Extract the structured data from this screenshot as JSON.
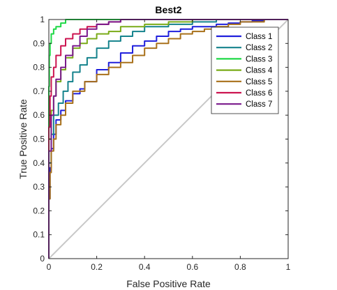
{
  "chart_data": {
    "type": "line",
    "title": "Best2",
    "xlabel": "False Positive Rate",
    "ylabel": "True Positive Rate",
    "xlim": [
      0,
      1
    ],
    "ylim": [
      0,
      1
    ],
    "xticks": [
      "0",
      "0.2",
      "0.4",
      "0.6",
      "0.8",
      "1"
    ],
    "yticks": [
      "0",
      "0.1",
      "0.2",
      "0.3",
      "0.4",
      "0.5",
      "0.6",
      "0.7",
      "0.8",
      "0.9",
      "1"
    ],
    "grid": false,
    "legend_position": "top-right",
    "reference_line": {
      "x": [
        0,
        1
      ],
      "y": [
        0,
        1
      ],
      "color": "#c8c8c8"
    },
    "series": [
      {
        "name": "Class 1",
        "color": "#1f1fdc",
        "x": [
          0,
          0.005,
          0.01,
          0.02,
          0.03,
          0.05,
          0.07,
          0.1,
          0.13,
          0.15,
          0.2,
          0.25,
          0.3,
          0.35,
          0.4,
          0.45,
          0.5,
          0.55,
          0.6,
          0.7,
          0.75,
          0.8,
          0.85,
          0.9,
          1
        ],
        "y": [
          0,
          0.25,
          0.38,
          0.46,
          0.52,
          0.58,
          0.62,
          0.66,
          0.69,
          0.71,
          0.74,
          0.79,
          0.82,
          0.86,
          0.89,
          0.91,
          0.93,
          0.95,
          0.96,
          0.97,
          0.98,
          0.985,
          0.99,
          0.995,
          1
        ]
      },
      {
        "name": "Class 2",
        "color": "#14828c",
        "x": [
          0,
          0.01,
          0.02,
          0.04,
          0.06,
          0.08,
          0.1,
          0.13,
          0.16,
          0.2,
          0.25,
          0.3,
          0.35,
          0.4,
          0.5,
          0.6,
          0.7,
          0.8,
          1
        ],
        "y": [
          0,
          0.4,
          0.52,
          0.6,
          0.65,
          0.7,
          0.74,
          0.78,
          0.81,
          0.84,
          0.88,
          0.91,
          0.93,
          0.95,
          0.97,
          0.98,
          0.99,
          1,
          1
        ]
      },
      {
        "name": "Class 3",
        "color": "#1ed846",
        "x": [
          0,
          0.002,
          0.005,
          0.01,
          0.02,
          0.03,
          0.05,
          0.07,
          0.1,
          0.3,
          1
        ],
        "y": [
          0,
          0.72,
          0.85,
          0.9,
          0.94,
          0.96,
          0.97,
          0.985,
          1,
          1,
          1
        ]
      },
      {
        "name": "Class 4",
        "color": "#7aab18",
        "x": [
          0,
          0.01,
          0.02,
          0.03,
          0.05,
          0.07,
          0.1,
          0.13,
          0.16,
          0.2,
          0.25,
          0.3,
          0.4,
          0.5,
          0.6,
          1
        ],
        "y": [
          0,
          0.5,
          0.62,
          0.68,
          0.74,
          0.79,
          0.84,
          0.88,
          0.9,
          0.92,
          0.94,
          0.95,
          0.97,
          0.98,
          0.99,
          1
        ]
      },
      {
        "name": "Class 5",
        "color": "#a8701a",
        "x": [
          0,
          0.005,
          0.01,
          0.02,
          0.03,
          0.05,
          0.07,
          0.1,
          0.15,
          0.2,
          0.25,
          0.3,
          0.35,
          0.4,
          0.45,
          0.5,
          0.55,
          0.6,
          0.65,
          0.7,
          0.75,
          0.8,
          0.9,
          1
        ],
        "y": [
          0,
          0.25,
          0.36,
          0.45,
          0.5,
          0.56,
          0.6,
          0.65,
          0.7,
          0.74,
          0.77,
          0.8,
          0.82,
          0.85,
          0.88,
          0.9,
          0.92,
          0.94,
          0.95,
          0.96,
          0.97,
          0.98,
          0.99,
          1
        ]
      },
      {
        "name": "Class 6",
        "color": "#cc1450",
        "x": [
          0,
          0.005,
          0.01,
          0.02,
          0.03,
          0.05,
          0.07,
          0.1,
          0.13,
          0.16,
          0.2,
          0.25,
          0.3,
          0.35,
          0.4,
          1
        ],
        "y": [
          0,
          0.55,
          0.68,
          0.76,
          0.8,
          0.85,
          0.89,
          0.92,
          0.94,
          0.96,
          0.97,
          0.98,
          0.99,
          1,
          1,
          1
        ]
      },
      {
        "name": "Class 7",
        "color": "#7a1a8c",
        "x": [
          0,
          0.01,
          0.02,
          0.03,
          0.05,
          0.07,
          0.1,
          0.13,
          0.16,
          0.2,
          0.25,
          0.3,
          0.4,
          1
        ],
        "y": [
          0,
          0.45,
          0.6,
          0.68,
          0.75,
          0.8,
          0.85,
          0.89,
          0.93,
          0.96,
          0.98,
          0.99,
          1,
          1
        ]
      }
    ]
  }
}
